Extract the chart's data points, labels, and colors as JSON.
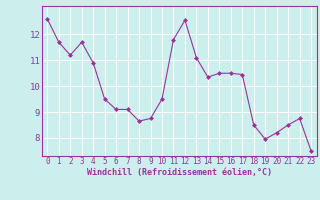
{
  "x": [
    0,
    1,
    2,
    3,
    4,
    5,
    6,
    7,
    8,
    9,
    10,
    11,
    12,
    13,
    14,
    15,
    16,
    17,
    18,
    19,
    20,
    21,
    22,
    23
  ],
  "y": [
    12.6,
    11.7,
    11.2,
    11.7,
    10.9,
    9.5,
    9.1,
    9.1,
    8.65,
    8.75,
    9.5,
    11.8,
    12.55,
    11.1,
    10.35,
    10.5,
    10.5,
    10.45,
    8.5,
    7.95,
    8.2,
    8.5,
    8.75,
    7.5
  ],
  "line_color": "#993399",
  "marker": "D",
  "marker_size": 2.0,
  "bg_color": "#cceeed",
  "grid_color": "#ffffff",
  "xlabel": "Windchill (Refroidissement éolien,°C)",
  "xlabel_color": "#993399",
  "tick_color": "#993399",
  "spine_color": "#993399",
  "ylim": [
    7.3,
    13.1
  ],
  "xlim": [
    -0.5,
    23.5
  ],
  "yticks": [
    8,
    9,
    10,
    11,
    12
  ],
  "xticks": [
    0,
    1,
    2,
    3,
    4,
    5,
    6,
    7,
    8,
    9,
    10,
    11,
    12,
    13,
    14,
    15,
    16,
    17,
    18,
    19,
    20,
    21,
    22,
    23
  ],
  "tick_fontsize": 5.5,
  "ylabel_fontsize": 6.0,
  "xlabel_fontsize": 6.0
}
